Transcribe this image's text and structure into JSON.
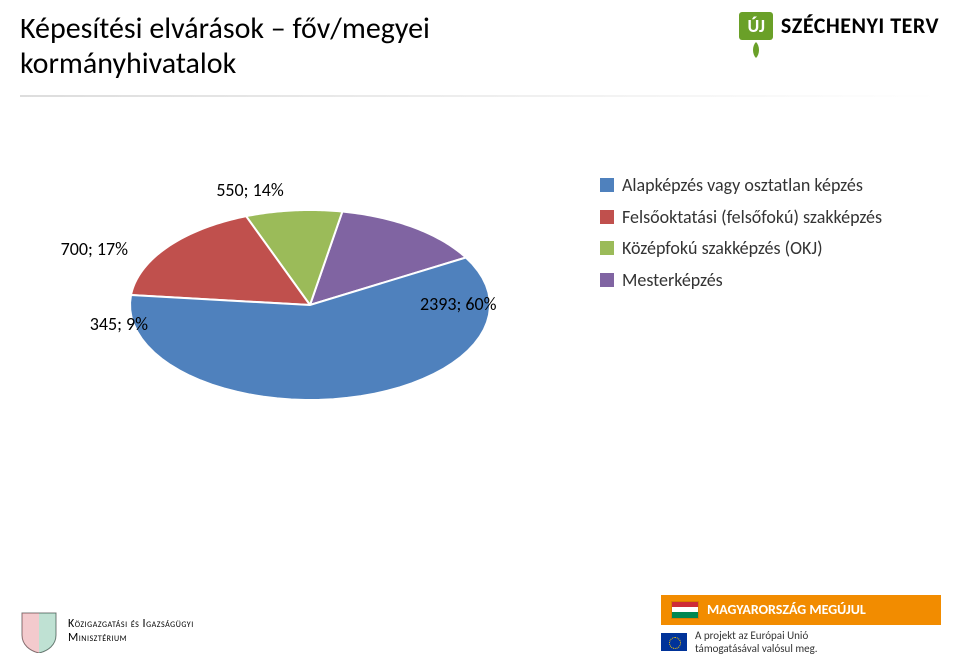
{
  "header": {
    "title_line1": "Képesítési elvárások – főv/megyei",
    "title_line2": "kormányhivatalok",
    "logo_badge": "ÚJ",
    "logo_text": "SZÉCHENYI TERV"
  },
  "chart": {
    "type": "pie",
    "background_color": "#ffffff",
    "slice_outline_color": "#ffffff",
    "slice_outline_width": 2,
    "label_fontsize": 18,
    "label_color": "#000000",
    "slices": [
      {
        "key": "alapkepzes",
        "value": 2393,
        "value_label": "2393; 60%",
        "color": "#4f81bd"
      },
      {
        "key": "felsooktatasi",
        "value": 700,
        "value_label": "700; 17%",
        "color": "#c0504d"
      },
      {
        "key": "kozepfoku",
        "value": 345,
        "value_label": "345; 9%",
        "color": "#9bbb59"
      },
      {
        "key": "mesterkepzes",
        "value": 550,
        "value_label": "550; 14%",
        "color": "#8064a2"
      }
    ]
  },
  "legend": {
    "items": [
      {
        "key": "alapkepzes",
        "label": "Alapképzés vagy osztatlan képzés",
        "swatch": "#4f81bd"
      },
      {
        "key": "felsooktatasi",
        "label": "Felsőoktatási (felsőfokú) szakképzés",
        "swatch": "#c0504d"
      },
      {
        "key": "kozepfoku",
        "label": "Középfokú szakképzés (OKJ)",
        "swatch": "#9bbb59"
      },
      {
        "key": "mesterkepzes",
        "label": "Mesterképzés",
        "swatch": "#8064a2"
      }
    ]
  },
  "footer": {
    "ministry_line1": "Közigazgatási és Igazságügyi",
    "ministry_line2": "Minisztérium",
    "orange_bar_text": "MAGYARORSZÁG MEGÚJUL",
    "eu_text_line1": "A projekt az Európai Unió",
    "eu_text_line2": "támogatásával valósul meg.",
    "hu_flag_colors": [
      "#ce2b37",
      "#ffffff",
      "#008751"
    ]
  }
}
